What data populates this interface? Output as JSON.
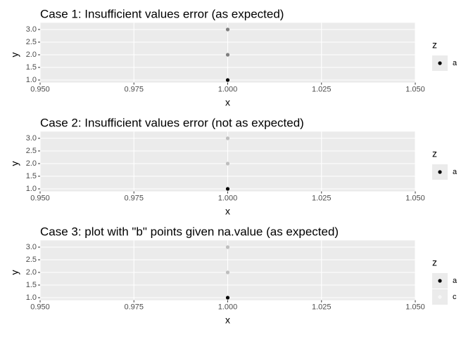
{
  "chart_data": [
    {
      "type": "scatter",
      "title": "Case 1: Insufficient values error (as expected)",
      "xlabel": "x",
      "ylabel": "y",
      "legend_title": "z",
      "series": [
        {
          "name": "a",
          "color": "#000000",
          "x": [
            1.0
          ],
          "values": [
            1.0
          ]
        },
        {
          "color": "#7f7f7f",
          "x": [
            1.0,
            1.0
          ],
          "values": [
            2.0,
            3.0
          ]
        }
      ],
      "xlim": [
        0.95,
        1.05
      ],
      "ylim": [
        0.9,
        3.1
      ],
      "xticks": [
        {
          "value": 0.95,
          "label": "0.950"
        },
        {
          "value": 0.975,
          "label": "0.975"
        },
        {
          "value": 1.0,
          "label": "1.000"
        },
        {
          "value": 1.025,
          "label": "1.025"
        },
        {
          "value": 1.05,
          "label": "1.050"
        }
      ],
      "yticks": [
        {
          "value": 1.0,
          "label": "1.0"
        },
        {
          "value": 1.5,
          "label": "1.5"
        },
        {
          "value": 2.0,
          "label": "2.0"
        },
        {
          "value": 2.5,
          "label": "2.5"
        },
        {
          "value": 3.0,
          "label": "3.0"
        }
      ],
      "grid": true
    },
    {
      "type": "scatter",
      "title": "Case 2: Insufficient values error (not as expected)",
      "xlabel": "x",
      "ylabel": "y",
      "legend_title": "z",
      "series": [
        {
          "name": "a",
          "color": "#000000",
          "x": [
            1.0
          ],
          "values": [
            1.0
          ]
        },
        {
          "color": "#bebebe",
          "x": [
            1.0,
            1.0
          ],
          "values": [
            2.0,
            3.0
          ]
        }
      ],
      "xlim": [
        0.95,
        1.05
      ],
      "ylim": [
        0.9,
        3.1
      ],
      "xticks": [
        {
          "value": 0.95,
          "label": "0.950"
        },
        {
          "value": 0.975,
          "label": "0.975"
        },
        {
          "value": 1.0,
          "label": "1.000"
        },
        {
          "value": 1.025,
          "label": "1.025"
        },
        {
          "value": 1.05,
          "label": "1.050"
        }
      ],
      "yticks": [
        {
          "value": 1.0,
          "label": "1.0"
        },
        {
          "value": 1.5,
          "label": "1.5"
        },
        {
          "value": 2.0,
          "label": "2.0"
        },
        {
          "value": 2.5,
          "label": "2.5"
        },
        {
          "value": 3.0,
          "label": "3.0"
        }
      ],
      "grid": true
    },
    {
      "type": "scatter",
      "title": "Case 3: plot with \"b\" points given na.value (as expected)",
      "xlabel": "x",
      "ylabel": "y",
      "legend_title": "z",
      "series": [
        {
          "name": "a",
          "color": "#000000",
          "x": [
            1.0
          ],
          "values": [
            1.0
          ]
        },
        {
          "name": "c",
          "color": "#f7f7f7",
          "x": [],
          "values": []
        },
        {
          "color": "#bebebe",
          "x": [
            1.0,
            1.0
          ],
          "values": [
            2.0,
            3.0
          ]
        }
      ],
      "xlim": [
        0.95,
        1.05
      ],
      "ylim": [
        0.9,
        3.1
      ],
      "xticks": [
        {
          "value": 0.95,
          "label": "0.950"
        },
        {
          "value": 0.975,
          "label": "0.975"
        },
        {
          "value": 1.0,
          "label": "1.000"
        },
        {
          "value": 1.025,
          "label": "1.025"
        },
        {
          "value": 1.05,
          "label": "1.050"
        }
      ],
      "yticks": [
        {
          "value": 1.0,
          "label": "1.0"
        },
        {
          "value": 1.5,
          "label": "1.5"
        },
        {
          "value": 2.0,
          "label": "2.0"
        },
        {
          "value": 2.5,
          "label": "2.5"
        },
        {
          "value": 3.0,
          "label": "3.0"
        }
      ],
      "grid": true
    }
  ]
}
